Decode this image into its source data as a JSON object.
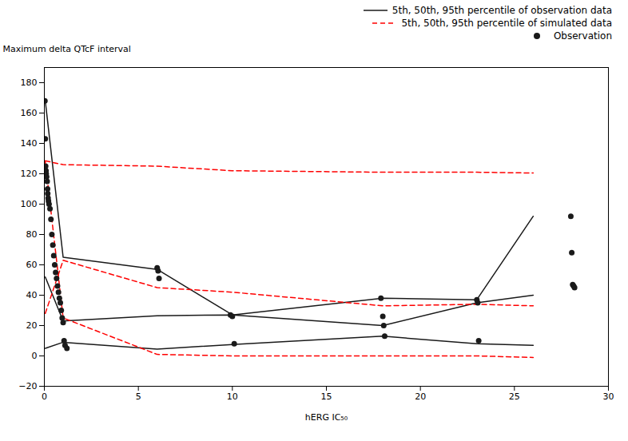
{
  "chart_data": {
    "type": "line",
    "x_label": "hERG IC₅₀",
    "y_label": "Maximum delta QTcF interval",
    "xlim": [
      0,
      30
    ],
    "ylim": [
      -20,
      190
    ],
    "xticks": [
      0,
      5,
      10,
      15,
      20,
      25,
      30
    ],
    "yticks": [
      -20,
      0,
      20,
      40,
      60,
      80,
      100,
      120,
      140,
      160,
      180
    ],
    "grid": false,
    "legend": "upper right",
    "series": [
      {
        "name": "5th, 50th, 95th percentile of observation data",
        "type": "line",
        "line_style": "solid",
        "color": "#1a1a1a",
        "x": [
          0.05,
          1.0,
          6.0,
          10.0,
          18.0,
          23.0,
          26.0
        ],
        "values": [
          [
            5.0,
            9.0,
            4.5,
            7.5,
            13.0,
            8.0,
            7.0
          ],
          [
            52.0,
            23.0,
            26.5,
            27.0,
            20.0,
            35.0,
            40.0
          ],
          [
            168.0,
            65.0,
            57.0,
            27.0,
            38.0,
            37.0,
            92.0
          ]
        ]
      },
      {
        "name": "5th, 50th, 95th percentile of simulated data",
        "type": "line",
        "line_style": "dashed",
        "color": "#ff0000",
        "x": [
          0.05,
          1.0,
          6.0,
          10.0,
          18.0,
          23.0,
          26.0
        ],
        "values": [
          [
            128.0,
            25.0,
            1.0,
            0.0,
            0.0,
            0.0,
            -1.0
          ],
          [
            28.0,
            63.0,
            45.0,
            42.0,
            33.0,
            34.0,
            33.0
          ],
          [
            128.5,
            126.0,
            125.0,
            122.0,
            121.0,
            121.0,
            120.5
          ]
        ]
      },
      {
        "name": "Observation",
        "type": "scatter",
        "marker": "circle",
        "color": "#1a1a1a",
        "x": [
          0.03,
          0.05,
          0.07,
          0.09,
          0.1,
          0.12,
          0.15,
          0.17,
          0.18,
          0.2,
          0.22,
          0.25,
          0.3,
          0.35,
          0.4,
          0.45,
          0.5,
          0.55,
          0.6,
          0.65,
          0.7,
          0.75,
          0.8,
          0.85,
          0.9,
          0.95,
          1.0,
          1.05,
          1.1,
          1.2,
          6.0,
          6.05,
          6.1,
          9.9,
          10.0,
          10.1,
          17.9,
          18.0,
          18.05,
          18.1,
          23.0,
          23.05,
          23.1,
          28.0,
          28.05,
          28.1,
          28.15,
          28.2
        ],
        "values": [
          168.0,
          143.0,
          125.0,
          122.0,
          120.0,
          118.0,
          115.0,
          110.0,
          107.0,
          104.0,
          102.0,
          100.0,
          97.0,
          90.0,
          80.0,
          73.0,
          66.0,
          60.0,
          55.0,
          51.0,
          46.0,
          42.0,
          38.0,
          35.0,
          30.0,
          25.0,
          22.0,
          10.0,
          7.0,
          5.0,
          58.0,
          56.0,
          51.0,
          27.0,
          26.0,
          8.0,
          38.0,
          26.0,
          20.0,
          13.0,
          37.0,
          35.0,
          10.0,
          92.0,
          68.0,
          47.0,
          46.0,
          45.0
        ]
      }
    ]
  }
}
